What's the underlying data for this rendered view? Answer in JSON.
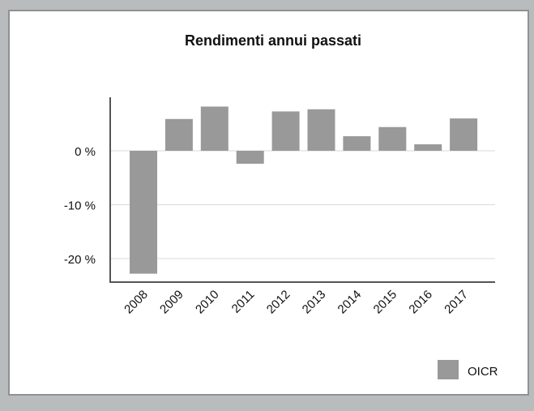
{
  "chart_data": {
    "type": "bar",
    "title": "Rendimenti annui passati",
    "categories": [
      "2008",
      "2009",
      "2010",
      "2011",
      "2012",
      "2013",
      "2014",
      "2015",
      "2016",
      "2017"
    ],
    "series": [
      {
        "name": "OICR",
        "values": [
          -22.8,
          5.9,
          8.2,
          -2.4,
          7.3,
          7.7,
          2.7,
          4.4,
          1.2,
          6.0
        ]
      }
    ],
    "yticks": [
      "0 %",
      "-10 %",
      "-20 %"
    ],
    "ylim": [
      -24,
      10
    ],
    "grid": true,
    "legend": "bottom-right",
    "colors": {
      "bar": "#999999",
      "axis": "#555555",
      "grid": "#d9d9d9",
      "background": "#b9bcbc"
    }
  }
}
